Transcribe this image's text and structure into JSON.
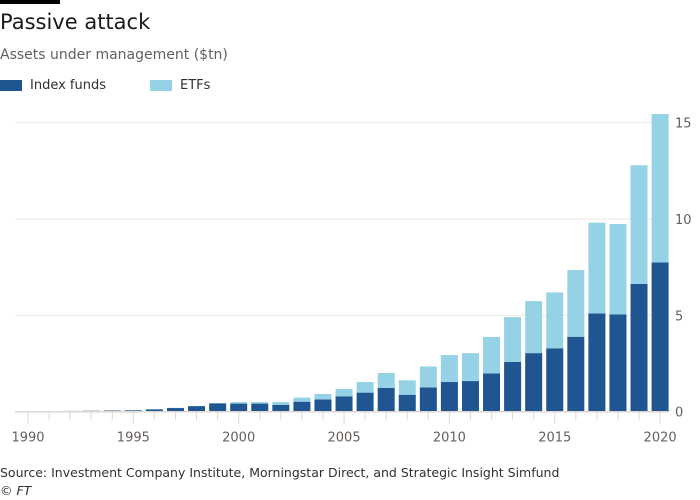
{
  "title": "Passive attack",
  "subtitle": "Assets under management ($tn)",
  "source": "Source: Investment Company Institute, Morningstar Direct, and Strategic Insight Simfund",
  "credit": "© FT",
  "colors": {
    "index_funds": "#1f5590",
    "etfs": "#96d2e6",
    "grid": "#ebe7e4",
    "text": "#66605c"
  },
  "chart_data": {
    "type": "bar",
    "stacked": true,
    "title": "Passive attack",
    "subtitle": "Assets under management ($tn)",
    "x": [
      1990,
      1991,
      1992,
      1993,
      1994,
      1995,
      1996,
      1997,
      1998,
      1999,
      2000,
      2001,
      2002,
      2003,
      2004,
      2005,
      2006,
      2007,
      2008,
      2009,
      2010,
      2011,
      2012,
      2013,
      2014,
      2015,
      2016,
      2017,
      2018,
      2019,
      2020
    ],
    "x_ticks": [
      "1990",
      "1995",
      "2000",
      "2005",
      "2010",
      "2015",
      "2020"
    ],
    "y_ticks": [
      "0",
      "5",
      "10",
      "15"
    ],
    "ylim": [
      0,
      15.5
    ],
    "grid": true,
    "y_axis_side": "right",
    "legend_placement": "top-left",
    "series": [
      {
        "name": "Index funds",
        "values": [
          0.02,
          0.03,
          0.04,
          0.05,
          0.06,
          0.07,
          0.12,
          0.19,
          0.29,
          0.43,
          0.42,
          0.42,
          0.36,
          0.52,
          0.64,
          0.8,
          0.99,
          1.23,
          0.88,
          1.26,
          1.54,
          1.59,
          1.99,
          2.58,
          3.04,
          3.29,
          3.89,
          5.1,
          5.05,
          6.63,
          7.75
        ]
      },
      {
        "name": "ETFs",
        "values": [
          0,
          0,
          0,
          0,
          0,
          0.01,
          0.01,
          0.01,
          0.01,
          0.02,
          0.08,
          0.08,
          0.14,
          0.21,
          0.28,
          0.38,
          0.55,
          0.78,
          0.75,
          1.09,
          1.4,
          1.45,
          1.89,
          2.33,
          2.7,
          2.9,
          3.46,
          4.71,
          4.69,
          6.16,
          7.7
        ]
      }
    ]
  }
}
